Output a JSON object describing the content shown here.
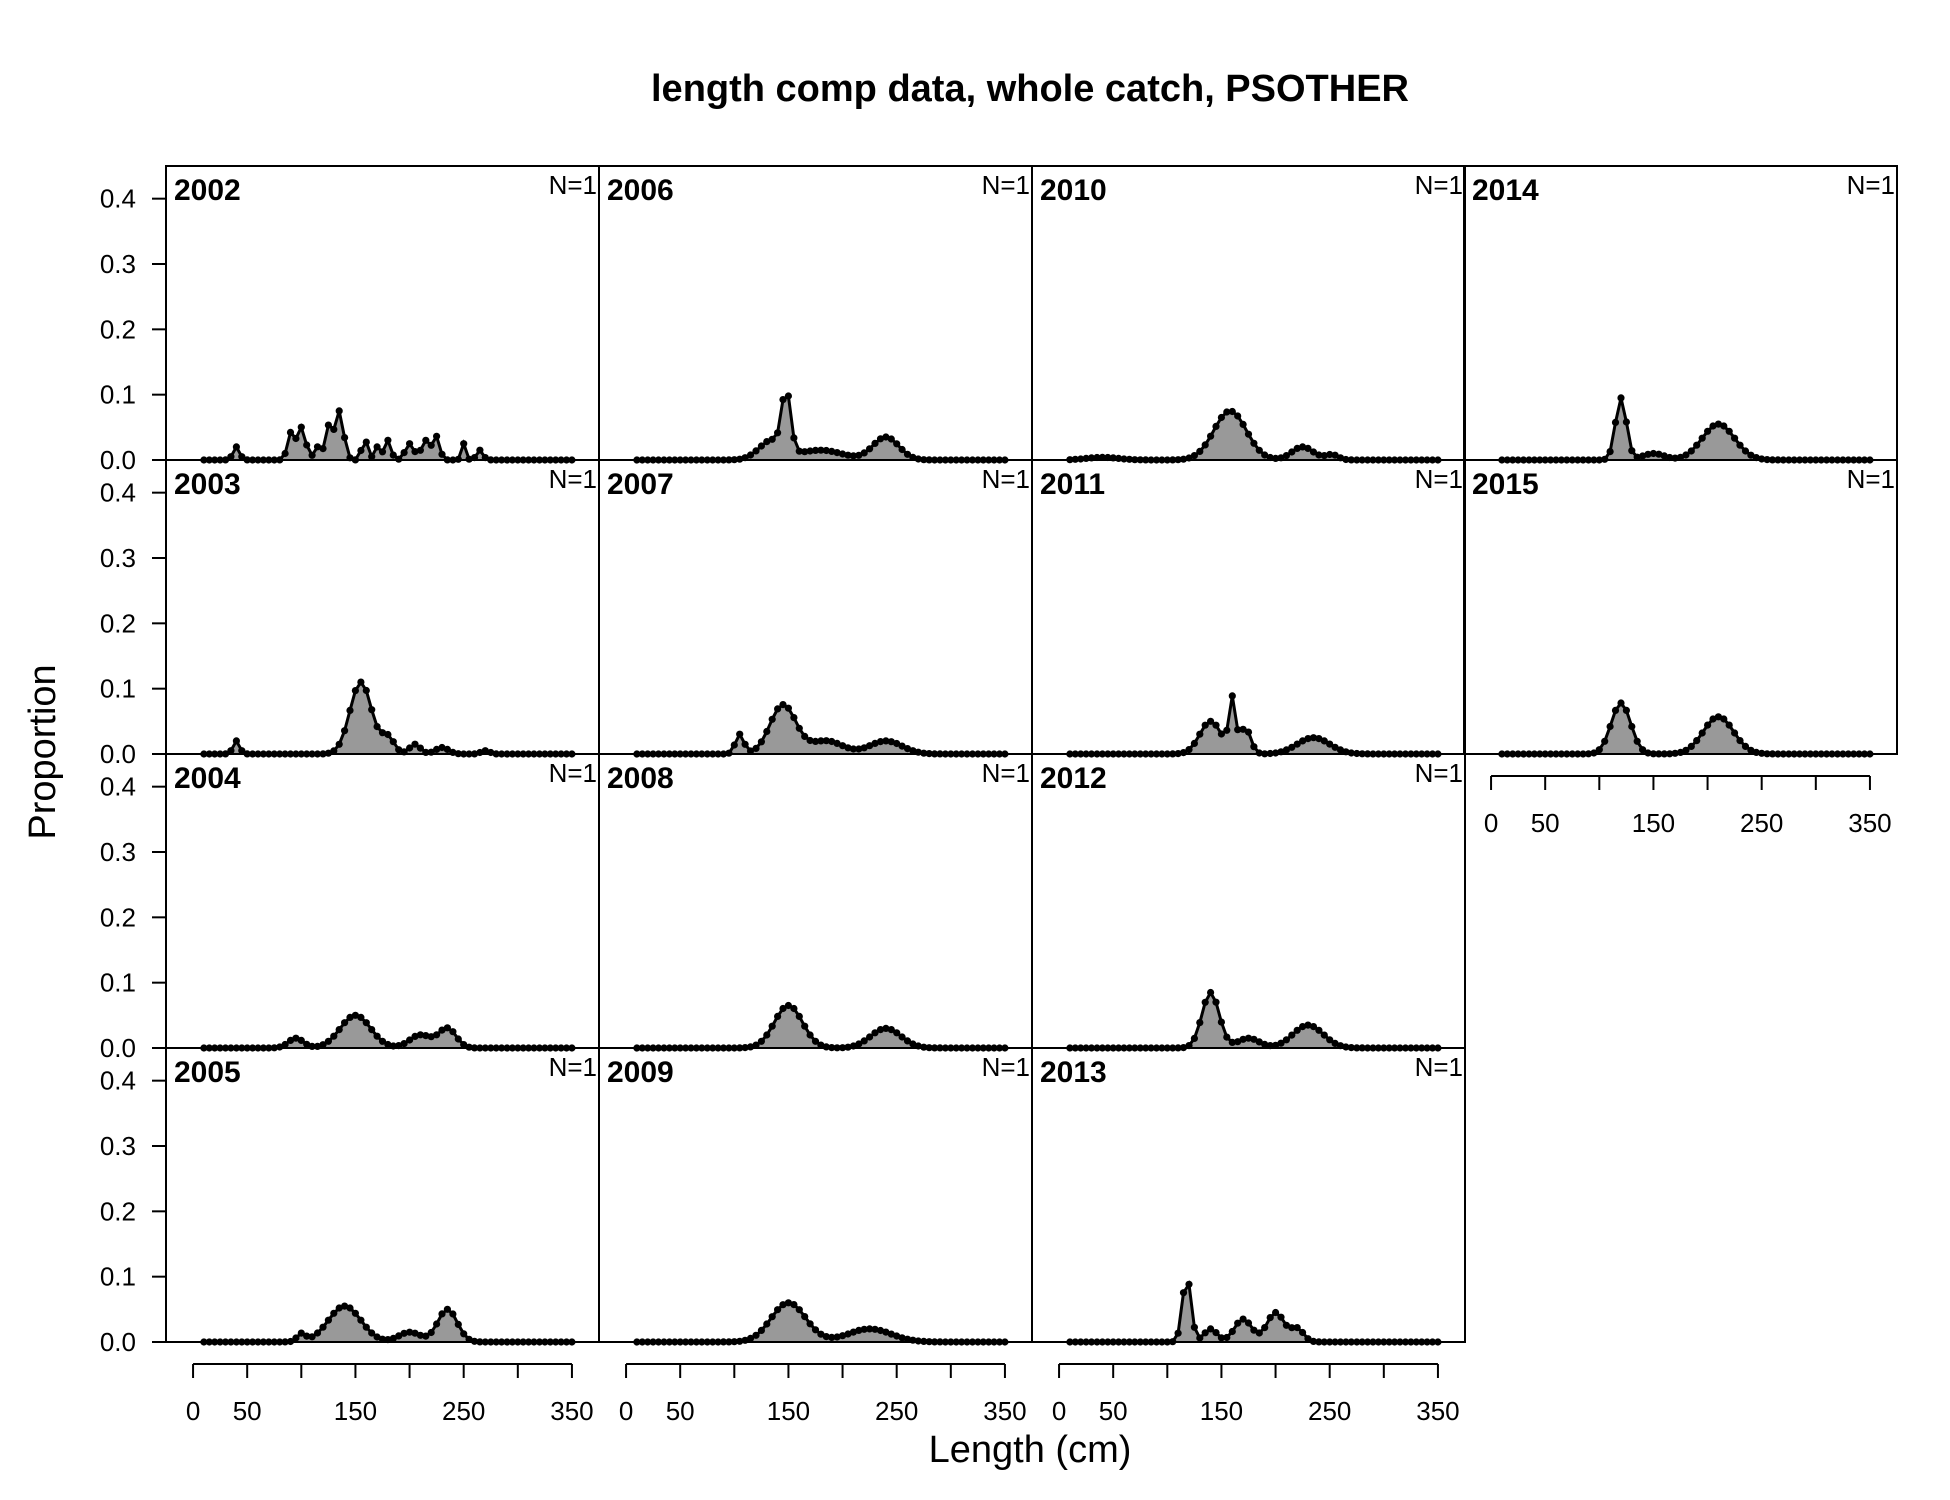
{
  "title": "length comp data, whole catch, PSOTHER",
  "chart_data": {
    "type": "area",
    "title": "length comp data, whole catch, PSOTHER",
    "xlabel": "Length (cm)",
    "ylabel": "Proportion",
    "xlim": [
      -25,
      375
    ],
    "ylim": [
      0,
      0.45
    ],
    "x_ticks": [
      0,
      50,
      150,
      250,
      350
    ],
    "y_ticks": [
      "0.0",
      "0.1",
      "0.2",
      "0.3",
      "0.4"
    ],
    "bin_start": 10,
    "bin_width": 5,
    "fill_color": "#999999",
    "line_color": "#000000",
    "grid": false,
    "panels": [
      {
        "year": "2002",
        "n_label": "N=1",
        "peaks": [
          [
            40,
            0.02,
            3
          ],
          [
            90,
            0.04,
            3
          ],
          [
            100,
            0.05,
            4
          ],
          [
            115,
            0.02,
            3
          ],
          [
            125,
            0.05,
            3
          ],
          [
            135,
            0.075,
            4
          ],
          [
            158,
            0.045,
            2
          ],
          [
            170,
            0.02,
            3
          ],
          [
            180,
            0.03,
            3
          ],
          [
            200,
            0.025,
            4
          ],
          [
            215,
            0.03,
            4
          ],
          [
            225,
            0.035,
            3
          ],
          [
            250,
            0.025,
            2
          ],
          [
            265,
            0.015,
            3
          ]
        ]
      },
      {
        "year": "2003",
        "n_label": "N=1",
        "peaks": [
          [
            40,
            0.02,
            3
          ],
          [
            155,
            0.11,
            10
          ],
          [
            180,
            0.025,
            6
          ],
          [
            205,
            0.015,
            5
          ],
          [
            230,
            0.01,
            6
          ],
          [
            270,
            0.005,
            4
          ]
        ]
      },
      {
        "year": "2004",
        "n_label": "N=1",
        "peaks": [
          [
            95,
            0.015,
            7
          ],
          [
            150,
            0.05,
            14
          ],
          [
            210,
            0.02,
            10
          ],
          [
            235,
            0.03,
            8
          ]
        ]
      },
      {
        "year": "2005",
        "n_label": "N=1",
        "peaks": [
          [
            100,
            0.012,
            4
          ],
          [
            140,
            0.055,
            15
          ],
          [
            200,
            0.015,
            10
          ],
          [
            235,
            0.05,
            9
          ]
        ]
      },
      {
        "year": "2006",
        "n_label": "N=1",
        "peaks": [
          [
            148,
            0.09,
            4
          ],
          [
            135,
            0.03,
            12
          ],
          [
            180,
            0.015,
            20
          ],
          [
            240,
            0.035,
            12
          ]
        ]
      },
      {
        "year": "2007",
        "n_label": "N=1",
        "peaks": [
          [
            105,
            0.03,
            4
          ],
          [
            145,
            0.075,
            12
          ],
          [
            185,
            0.02,
            15
          ],
          [
            240,
            0.02,
            15
          ]
        ]
      },
      {
        "year": "2008",
        "n_label": "N=1",
        "peaks": [
          [
            150,
            0.065,
            13
          ],
          [
            240,
            0.03,
            14
          ]
        ]
      },
      {
        "year": "2009",
        "n_label": "N=1",
        "peaks": [
          [
            150,
            0.06,
            16
          ],
          [
            225,
            0.02,
            20
          ]
        ]
      },
      {
        "year": "2010",
        "n_label": "N=1",
        "peaks": [
          [
            40,
            0.004,
            15
          ],
          [
            158,
            0.075,
            15
          ],
          [
            225,
            0.02,
            10
          ],
          [
            252,
            0.008,
            6
          ]
        ]
      },
      {
        "year": "2011",
        "n_label": "N=1",
        "peaks": [
          [
            140,
            0.05,
            10
          ],
          [
            160,
            0.08,
            3
          ],
          [
            172,
            0.04,
            5
          ],
          [
            235,
            0.025,
            15
          ]
        ]
      },
      {
        "year": "2012",
        "n_label": "N=1",
        "peaks": [
          [
            140,
            0.085,
            8
          ],
          [
            175,
            0.015,
            10
          ],
          [
            230,
            0.035,
            14
          ]
        ]
      },
      {
        "year": "2013",
        "n_label": "N=1",
        "peaks": [
          [
            118,
            0.1,
            4
          ],
          [
            140,
            0.02,
            6
          ],
          [
            170,
            0.035,
            8
          ],
          [
            200,
            0.045,
            8
          ],
          [
            220,
            0.02,
            6
          ]
        ]
      },
      {
        "year": "2014",
        "n_label": "N=1",
        "peaks": [
          [
            120,
            0.095,
            5
          ],
          [
            150,
            0.01,
            10
          ],
          [
            210,
            0.055,
            15
          ]
        ]
      },
      {
        "year": "2015",
        "n_label": "N=1",
        "peaks": [
          [
            120,
            0.078,
            9
          ],
          [
            210,
            0.057,
            14
          ]
        ]
      }
    ],
    "layout": {
      "columns": [
        [
          "2002",
          "2003",
          "2004",
          "2005"
        ],
        [
          "2006",
          "2007",
          "2008",
          "2009"
        ],
        [
          "2010",
          "2011",
          "2012",
          "2013"
        ],
        [
          "2014",
          "2015"
        ]
      ]
    }
  }
}
